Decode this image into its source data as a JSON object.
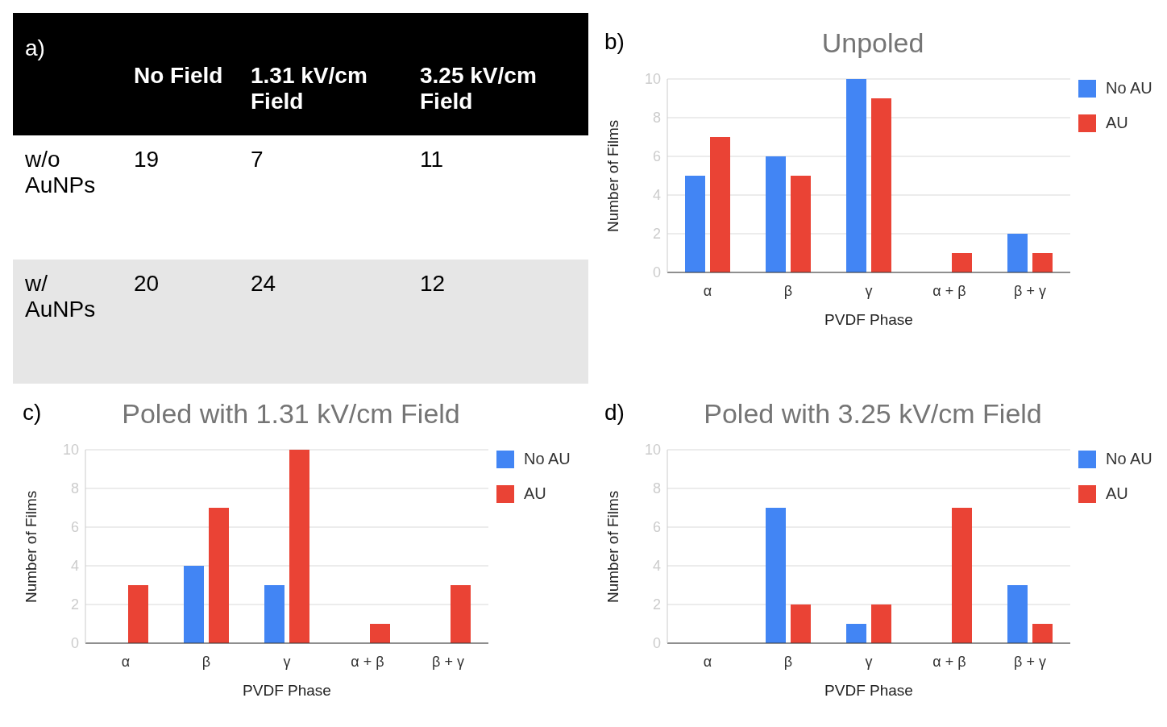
{
  "chart_data": [
    {
      "type": "other",
      "title": "a)",
      "categories": [
        "No Field",
        "1.31 kV/cm Field",
        "3.25 kV/cm Field"
      ],
      "y_categories": [
        "w/o AuNPs",
        "w/ AuNPs"
      ],
      "cell_labels": [
        [
          "19",
          "7",
          "11"
        ],
        [
          "20",
          "24",
          "12"
        ]
      ]
    },
    {
      "type": "bar",
      "title": "Unpoled",
      "annotations": [
        "b)"
      ],
      "xlabel": "PVDF Phase",
      "ylabel": "Number of Films",
      "categories": [
        "α",
        "β",
        "γ",
        "α + β",
        "β + γ"
      ],
      "series": [
        {
          "name": "No AU",
          "color": "#4285f4",
          "values": [
            5,
            6,
            10,
            0,
            2
          ]
        },
        {
          "name": "AU",
          "color": "#ea4335",
          "values": [
            7,
            5,
            9,
            1,
            1
          ]
        }
      ],
      "ylim": [
        0,
        10
      ],
      "yticks": [
        0,
        2,
        4,
        6,
        8,
        10
      ],
      "grid": "y",
      "legend": "top right"
    },
    {
      "type": "bar",
      "title": "Poled with 1.31 kV/cm Field",
      "annotations": [
        "c)"
      ],
      "xlabel": "PVDF Phase",
      "ylabel": "Number of Films",
      "categories": [
        "α",
        "β",
        "γ",
        "α + β",
        "β + γ"
      ],
      "series": [
        {
          "name": "No AU",
          "color": "#4285f4",
          "values": [
            0,
            4,
            3,
            0,
            0
          ]
        },
        {
          "name": "AU",
          "color": "#ea4335",
          "values": [
            3,
            7,
            10,
            1,
            3
          ]
        }
      ],
      "ylim": [
        0,
        10
      ],
      "yticks": [
        0,
        2,
        4,
        6,
        8,
        10
      ],
      "grid": "y",
      "legend": "top right"
    },
    {
      "type": "bar",
      "title": "Poled with 3.25 kV/cm Field",
      "annotations": [
        "d)"
      ],
      "xlabel": "PVDF Phase",
      "ylabel": "Number of Films",
      "categories": [
        "α",
        "β",
        "γ",
        "α + β",
        "β + γ"
      ],
      "series": [
        {
          "name": "No AU",
          "color": "#4285f4",
          "values": [
            0,
            7,
            1,
            0,
            3
          ]
        },
        {
          "name": "AU",
          "color": "#ea4335",
          "values": [
            0,
            2,
            2,
            7,
            1
          ]
        }
      ],
      "ylim": [
        0,
        10
      ],
      "yticks": [
        0,
        2,
        4,
        6,
        8,
        10
      ],
      "grid": "y",
      "legend": "top right"
    }
  ]
}
